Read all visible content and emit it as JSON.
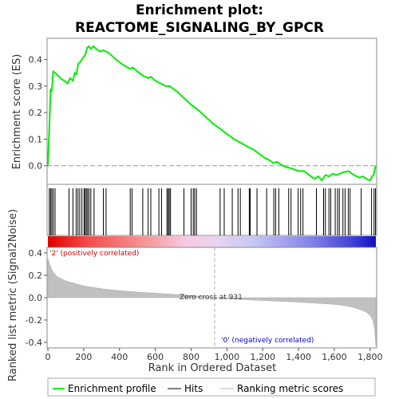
{
  "title_line1": "Enrichment plot:",
  "title_line2": "REACTOME_SIGNALING_BY_GPCR",
  "chart_data": {
    "type": "line",
    "es_panel": {
      "ylabel": "Enrichment score (ES)",
      "ylim": [
        -0.07,
        0.48
      ],
      "yticks": [
        "0.0",
        "0.1",
        "0.2",
        "0.3",
        "0.4"
      ],
      "series_name": "Enrichment profile",
      "color": "#00ee00",
      "x": [
        0,
        8,
        15,
        22,
        30,
        40,
        55,
        70,
        90,
        110,
        125,
        140,
        150,
        160,
        170,
        180,
        190,
        200,
        210,
        220,
        230,
        240,
        255,
        270,
        290,
        310,
        325,
        340,
        380,
        420,
        460,
        475,
        500,
        530,
        560,
        575,
        600,
        630,
        660,
        680,
        720,
        760,
        800,
        840,
        880,
        920,
        960,
        1000,
        1040,
        1080,
        1120,
        1150,
        1180,
        1210,
        1240,
        1260,
        1280,
        1300,
        1330,
        1360,
        1380,
        1400,
        1430,
        1460,
        1490,
        1510,
        1530,
        1550,
        1570,
        1590,
        1610,
        1630,
        1650,
        1680,
        1710,
        1740,
        1760,
        1780,
        1800,
        1810,
        1820,
        1830
      ],
      "y": [
        0.0,
        0.14,
        0.29,
        0.28,
        0.355,
        0.35,
        0.34,
        0.33,
        0.32,
        0.31,
        0.33,
        0.32,
        0.35,
        0.345,
        0.385,
        0.39,
        0.4,
        0.41,
        0.42,
        0.445,
        0.45,
        0.44,
        0.45,
        0.44,
        0.43,
        0.435,
        0.43,
        0.425,
        0.4,
        0.38,
        0.365,
        0.37,
        0.355,
        0.34,
        0.33,
        0.335,
        0.32,
        0.31,
        0.3,
        0.3,
        0.28,
        0.255,
        0.23,
        0.21,
        0.185,
        0.16,
        0.14,
        0.12,
        0.1,
        0.085,
        0.07,
        0.06,
        0.045,
        0.03,
        0.02,
        0.01,
        0.015,
        0.005,
        -0.005,
        -0.01,
        -0.015,
        -0.02,
        -0.02,
        -0.035,
        -0.05,
        -0.04,
        -0.055,
        -0.035,
        -0.04,
        -0.03,
        -0.035,
        -0.03,
        -0.025,
        -0.02,
        -0.035,
        -0.045,
        -0.04,
        -0.05,
        -0.055,
        -0.04,
        -0.035,
        0.0
      ]
    },
    "hits_panel": {
      "series_name": "Hits",
      "hit_positions": [
        8,
        15,
        22,
        30,
        40,
        118,
        140,
        158,
        168,
        178,
        190,
        202,
        208,
        215,
        222,
        230,
        240,
        258,
        310,
        325,
        460,
        470,
        530,
        560,
        575,
        620,
        635,
        665,
        672,
        678,
        685,
        760,
        800,
        812,
        820,
        830,
        962,
        985,
        1030,
        1062,
        1075,
        1125,
        1130,
        1168,
        1222,
        1262,
        1272,
        1290,
        1345,
        1358,
        1398,
        1412,
        1425,
        1500,
        1540,
        1550,
        1570,
        1580,
        1605,
        1618,
        1628,
        1648,
        1660,
        1678,
        1688,
        1750,
        1808,
        1822,
        1830
      ]
    },
    "metric_panel": {
      "ylabel": "Ranked list metric (Signal2Noise)",
      "series_name": "Ranking metric scores",
      "ylim": [
        -0.45,
        0.45
      ],
      "yticks": [
        "-0.4",
        "-0.2",
        "0.0",
        "0.2",
        "0.4"
      ],
      "x": [
        0,
        10,
        25,
        50,
        100,
        200,
        300,
        400,
        500,
        600,
        700,
        800,
        931,
        1000,
        1100,
        1200,
        1300,
        1400,
        1500,
        1600,
        1650,
        1700,
        1750,
        1780,
        1800,
        1815,
        1825,
        1832
      ],
      "y": [
        0.35,
        0.3,
        0.24,
        0.19,
        0.15,
        0.105,
        0.08,
        0.063,
        0.05,
        0.04,
        0.03,
        0.02,
        0.0,
        -0.01,
        -0.018,
        -0.026,
        -0.033,
        -0.04,
        -0.05,
        -0.06,
        -0.07,
        -0.085,
        -0.11,
        -0.13,
        -0.16,
        -0.2,
        -0.28,
        -0.43
      ],
      "zero_cross_label": "Zero cross at 931",
      "zero_cross": 931,
      "pos_label": "'2' (positively correlated)",
      "neg_label": "'0' (negatively correlated)"
    },
    "xlabel": "Rank in Ordered Dataset",
    "xlim": [
      0,
      1832
    ],
    "xticks": [
      0,
      200,
      400,
      600,
      800,
      1000,
      1200,
      1400,
      1600,
      1800
    ]
  },
  "legend": {
    "items": [
      {
        "label": "Enrichment profile",
        "color": "#00ee00"
      },
      {
        "label": "Hits",
        "color": "#000000"
      },
      {
        "label": "Ranking metric scores",
        "color": "#bbbbbb"
      }
    ]
  }
}
